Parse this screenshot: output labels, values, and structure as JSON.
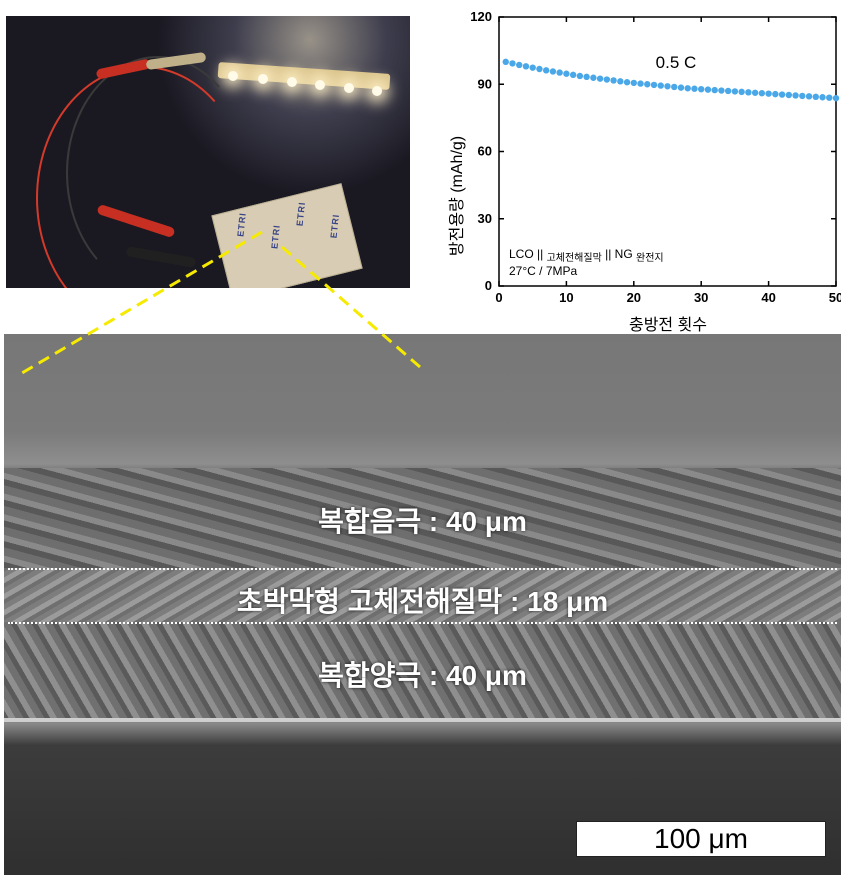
{
  "photo": {
    "cell_brand_text": "ETRI"
  },
  "chart_data": {
    "type": "scatter",
    "title": "",
    "annotation": "0.5 C",
    "note_line1_parts": [
      "LCO || ",
      "고체전해질막",
      " || NG ",
      "완전지"
    ],
    "note_line2": "27°C / 7MPa",
    "xlabel": "충방전 횟수",
    "ylabel": "방전용량 (mAh/g)",
    "xlim": [
      0,
      50
    ],
    "ylim": [
      0,
      120
    ],
    "xticks": [
      0,
      10,
      20,
      30,
      40,
      50
    ],
    "yticks": [
      0,
      30,
      60,
      90,
      120
    ],
    "grid": false,
    "marker_color": "#4aa8e8",
    "series": [
      {
        "x": [
          1,
          2,
          3,
          4,
          5,
          6,
          7,
          8,
          9,
          10,
          11,
          12,
          13,
          14,
          15,
          16,
          17,
          18,
          19,
          20,
          21,
          22,
          23,
          24,
          25,
          26,
          27,
          28,
          29,
          30,
          31,
          32,
          33,
          34,
          35,
          36,
          37,
          38,
          39,
          40,
          41,
          42,
          43,
          44,
          45,
          46,
          47,
          48,
          49,
          50
        ],
        "y": [
          100.0,
          99.3,
          98.6,
          98.0,
          97.4,
          96.8,
          96.2,
          95.7,
          95.2,
          94.7,
          94.2,
          93.7,
          93.3,
          92.9,
          92.5,
          92.1,
          91.7,
          91.3,
          90.9,
          90.6,
          90.3,
          90.0,
          89.7,
          89.4,
          89.1,
          88.8,
          88.5,
          88.2,
          88.0,
          87.8,
          87.6,
          87.4,
          87.2,
          87.0,
          86.8,
          86.6,
          86.4,
          86.2,
          86.0,
          85.8,
          85.6,
          85.4,
          85.2,
          85.0,
          84.8,
          84.6,
          84.4,
          84.2,
          84.0,
          83.8
        ]
      }
    ]
  },
  "sem": {
    "label_top": "복합음극 : 40 μm",
    "label_mid": "초박막형 고체전해질막 :  18 μm",
    "label_bottom": "복합양극 : 40 μm",
    "scale_bar": "100 μm",
    "guide_color": "#f5ea00"
  }
}
